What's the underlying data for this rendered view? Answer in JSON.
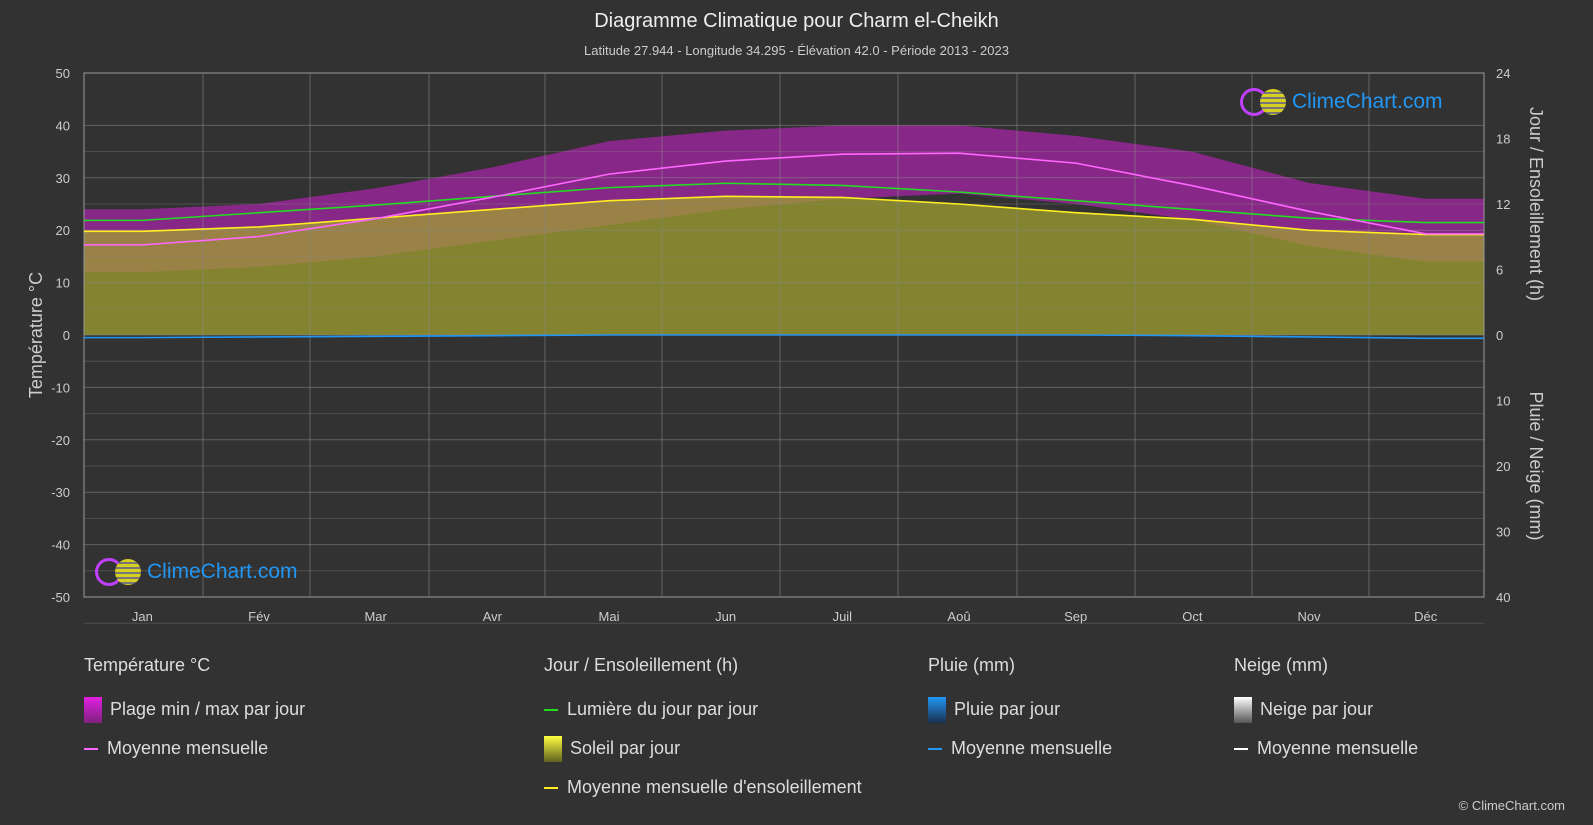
{
  "title": "Diagramme Climatique pour Charm el-Cheikh",
  "subtitle": "Latitude 27.944 - Longitude 34.295 - Élévation 42.0 - Période 2013 - 2023",
  "logo_text": "ClimeChart.com",
  "copyright": "© ClimeChart.com",
  "chart_data": {
    "type": "line",
    "categories": [
      "Jan",
      "Fév",
      "Mar",
      "Avr",
      "Mai",
      "Jun",
      "Juil",
      "Aoû",
      "Sep",
      "Oct",
      "Nov",
      "Déc"
    ],
    "y_left": {
      "label": "Température °C",
      "lim": [
        -50,
        50
      ],
      "ticks": [
        50,
        40,
        30,
        20,
        10,
        0,
        -10,
        -20,
        -30,
        -40,
        -50
      ]
    },
    "y_right_top": {
      "label": "Jour / Ensoleillement (h)",
      "lim": [
        0,
        24
      ],
      "ticks": [
        24,
        18,
        12,
        6,
        0
      ]
    },
    "y_right_bottom": {
      "label": "Pluie / Neige (mm)",
      "lim": [
        0,
        40
      ],
      "ticks": [
        0,
        10,
        20,
        30,
        40
      ]
    },
    "grid": true,
    "series": [
      {
        "name": "Moyenne mensuelle",
        "group": "temperature",
        "color": "#ff66ff",
        "values": [
          17.2,
          18.8,
          22.2,
          26.3,
          30.7,
          33.2,
          34.5,
          34.7,
          32.8,
          28.5,
          23.6,
          19.3
        ]
      },
      {
        "name": "Plage min / max par jour",
        "group": "temperature",
        "color": "#e020e0",
        "min": [
          12,
          13,
          15,
          18,
          21,
          24,
          26,
          27,
          25,
          22,
          17,
          14
        ],
        "max": [
          24,
          25,
          28,
          32,
          37,
          39,
          40,
          40,
          38,
          35,
          29,
          26
        ]
      },
      {
        "name": "Lumière du jour par jour",
        "group": "sun",
        "color": "#22dd22",
        "values": [
          10.5,
          11.2,
          11.9,
          12.7,
          13.5,
          13.9,
          13.7,
          13.1,
          12.3,
          11.5,
          10.7,
          10.3
        ]
      },
      {
        "name": "Soleil par jour",
        "group": "sun",
        "color": "#b8b830",
        "values": [
          9.5,
          9.9,
          10.7,
          11.5,
          12.3,
          12.7,
          12.6,
          12.0,
          11.2,
          10.6,
          9.6,
          9.2
        ]
      },
      {
        "name": "Moyenne mensuelle d'ensoleillement",
        "group": "sun",
        "color": "#ffee22",
        "values": [
          9.5,
          9.9,
          10.7,
          11.5,
          12.3,
          12.7,
          12.6,
          12.0,
          11.2,
          10.6,
          9.6,
          9.2
        ]
      },
      {
        "name": "Moyenne mensuelle",
        "group": "rain",
        "color": "#2196f3",
        "values": [
          0.4,
          0.3,
          0.2,
          0.1,
          0,
          0,
          0,
          0,
          0,
          0.1,
          0.3,
          0.5
        ]
      }
    ]
  },
  "legend": {
    "temp": {
      "title": "Température °C",
      "items": [
        "Plage min / max par jour",
        "Moyenne mensuelle"
      ]
    },
    "sun": {
      "title": "Jour / Ensoleillement (h)",
      "items": [
        "Lumière du jour par jour",
        "Soleil par jour",
        "Moyenne mensuelle d'ensoleillement"
      ]
    },
    "rain": {
      "title": "Pluie (mm)",
      "items": [
        "Pluie par jour",
        "Moyenne mensuelle"
      ]
    },
    "snow": {
      "title": "Neige (mm)",
      "items": [
        "Neige par jour",
        "Moyenne mensuelle"
      ]
    }
  }
}
